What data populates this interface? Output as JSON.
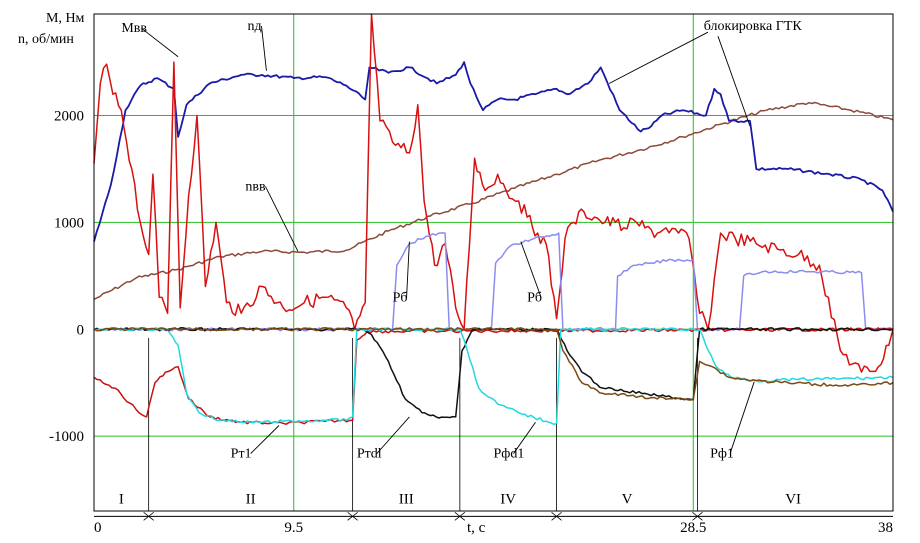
{
  "chart_data": {
    "type": "line",
    "ylabel_lines": [
      "M, Нм",
      "n, об/мин"
    ],
    "xlabel": "t, c",
    "xlim": [
      0,
      38
    ],
    "ylim": [
      -1700,
      2950
    ],
    "x_ticks": [
      {
        "v": 0,
        "label": "0"
      },
      {
        "v": 9.5,
        "label": "9.5"
      },
      {
        "v": 28.5,
        "label": "28.5"
      },
      {
        "v": 38,
        "label": "38"
      }
    ],
    "y_ticks": [
      {
        "v": 2000,
        "label": "2000"
      },
      {
        "v": 1000,
        "label": "1000"
      },
      {
        "v": 0,
        "label": "0"
      },
      {
        "v": -1000,
        "label": "-1000"
      }
    ],
    "grid": true,
    "phase_axis_y": -1750,
    "phases": [
      {
        "label": "I",
        "from": 0,
        "to": 2.6
      },
      {
        "label": "II",
        "from": 2.6,
        "to": 12.3
      },
      {
        "label": "III",
        "from": 12.3,
        "to": 17.4
      },
      {
        "label": "IV",
        "from": 17.4,
        "to": 22.0
      },
      {
        "label": "V",
        "from": 22.0,
        "to": 28.7
      },
      {
        "label": "VI",
        "from": 28.7,
        "to": 37.8
      }
    ],
    "series": [
      {
        "key": "n_vv",
        "color": "#8b4a3c",
        "points": [
          [
            0,
            280
          ],
          [
            2,
            480
          ],
          [
            4,
            560
          ],
          [
            6,
            680
          ],
          [
            8,
            730
          ],
          [
            10,
            720
          ],
          [
            12,
            740
          ],
          [
            14,
            920
          ],
          [
            16,
            1060
          ],
          [
            18,
            1180
          ],
          [
            20,
            1320
          ],
          [
            22,
            1450
          ],
          [
            24,
            1580
          ],
          [
            26,
            1680
          ],
          [
            28,
            1800
          ],
          [
            30,
            1930
          ],
          [
            32,
            2050
          ],
          [
            34,
            2120
          ],
          [
            36,
            2050
          ],
          [
            38,
            1960
          ]
        ]
      },
      {
        "key": "n_d",
        "color": "#1a1aa8",
        "points": [
          [
            0,
            820
          ],
          [
            0.8,
            1350
          ],
          [
            1.5,
            2050
          ],
          [
            2.2,
            2280
          ],
          [
            3,
            2350
          ],
          [
            3.8,
            2250
          ],
          [
            4,
            1800
          ],
          [
            4.4,
            2100
          ],
          [
            5.5,
            2300
          ],
          [
            7,
            2380
          ],
          [
            8,
            2380
          ],
          [
            9.5,
            2350
          ],
          [
            11,
            2360
          ],
          [
            12,
            2280
          ],
          [
            12.9,
            2150
          ],
          [
            13.1,
            2450
          ],
          [
            14,
            2400
          ],
          [
            15,
            2450
          ],
          [
            16.3,
            2300
          ],
          [
            17.2,
            2380
          ],
          [
            17.6,
            2500
          ],
          [
            17.9,
            2300
          ],
          [
            18.5,
            2050
          ],
          [
            19.2,
            2150
          ],
          [
            20,
            2150
          ],
          [
            21,
            2200
          ],
          [
            22,
            2250
          ],
          [
            22.5,
            2200
          ],
          [
            23.5,
            2300
          ],
          [
            24.1,
            2450
          ],
          [
            25,
            2050
          ],
          [
            26,
            1850
          ],
          [
            26.5,
            1900
          ],
          [
            27,
            2000
          ],
          [
            28,
            2050
          ],
          [
            29.1,
            2000
          ],
          [
            29.5,
            2250
          ],
          [
            29.8,
            2200
          ],
          [
            30.2,
            1950
          ],
          [
            31.2,
            1950
          ],
          [
            31.5,
            1500
          ],
          [
            33,
            1500
          ],
          [
            35,
            1450
          ],
          [
            36.5,
            1400
          ],
          [
            37.5,
            1300
          ],
          [
            38,
            1100
          ]
        ]
      },
      {
        "key": "M_vv",
        "color": "#d81010",
        "points": [
          [
            0,
            1550
          ],
          [
            0.3,
            2300
          ],
          [
            0.6,
            2480
          ],
          [
            0.9,
            2200
          ],
          [
            1.3,
            2050
          ],
          [
            1.8,
            1500
          ],
          [
            2.2,
            1000
          ],
          [
            2.6,
            700
          ],
          [
            2.8,
            1450
          ],
          [
            3.1,
            300
          ],
          [
            3.5,
            150
          ],
          [
            3.8,
            2500
          ],
          [
            4.1,
            200
          ],
          [
            4.5,
            1250
          ],
          [
            4.9,
            2000
          ],
          [
            5.3,
            400
          ],
          [
            5.8,
            1000
          ],
          [
            6.3,
            250
          ],
          [
            7,
            150
          ],
          [
            8,
            400
          ],
          [
            9,
            200
          ],
          [
            10,
            250
          ],
          [
            11,
            300
          ],
          [
            12,
            200
          ],
          [
            12.4,
            0
          ],
          [
            12.9,
            250
          ],
          [
            13.2,
            2950
          ],
          [
            13.6,
            1950
          ],
          [
            14.2,
            1750
          ],
          [
            15,
            1650
          ],
          [
            15.4,
            2100
          ],
          [
            15.7,
            1200
          ],
          [
            16.2,
            600
          ],
          [
            16.7,
            800
          ],
          [
            17.2,
            200
          ],
          [
            17.6,
            0
          ],
          [
            18.1,
            1600
          ],
          [
            18.6,
            1300
          ],
          [
            19.2,
            1450
          ],
          [
            19.6,
            1300
          ],
          [
            20.2,
            1200
          ],
          [
            20.6,
            1050
          ],
          [
            21.1,
            900
          ],
          [
            21.5,
            800
          ],
          [
            22,
            100
          ],
          [
            22.4,
            850
          ],
          [
            22.8,
            1000
          ],
          [
            23.3,
            1100
          ],
          [
            23.8,
            1050
          ],
          [
            24.3,
            1000
          ],
          [
            24.8,
            1000
          ],
          [
            25.2,
            950
          ],
          [
            25.8,
            1000
          ],
          [
            26.2,
            950
          ],
          [
            26.8,
            900
          ],
          [
            27.2,
            950
          ],
          [
            27.8,
            900
          ],
          [
            28.3,
            850
          ],
          [
            28.8,
            150
          ],
          [
            29.2,
            0
          ],
          [
            29.8,
            900
          ],
          [
            30.5,
            850
          ],
          [
            31.5,
            800
          ],
          [
            32.5,
            750
          ],
          [
            33.5,
            700
          ],
          [
            34.5,
            600
          ],
          [
            35.5,
            -200
          ],
          [
            36.5,
            -400
          ],
          [
            37.3,
            -350
          ],
          [
            37.8,
            -150
          ],
          [
            38,
            0
          ]
        ]
      },
      {
        "key": "P_b",
        "color": "#8c8cf0",
        "points": [
          [
            0,
            0
          ],
          [
            12,
            0
          ],
          [
            14.2,
            0
          ],
          [
            14.4,
            600
          ],
          [
            15,
            800
          ],
          [
            15.8,
            870
          ],
          [
            16.7,
            900
          ],
          [
            16.9,
            0
          ],
          [
            17,
            0
          ],
          [
            18.9,
            0
          ],
          [
            19.1,
            620
          ],
          [
            19.8,
            780
          ],
          [
            20.8,
            840
          ],
          [
            22.1,
            900
          ],
          [
            22.3,
            0
          ],
          [
            24.8,
            0
          ],
          [
            24.9,
            500
          ],
          [
            25.5,
            580
          ],
          [
            26.5,
            620
          ],
          [
            27.5,
            650
          ],
          [
            28.5,
            650
          ],
          [
            28.7,
            0
          ],
          [
            30.7,
            0
          ],
          [
            30.9,
            500
          ],
          [
            31.8,
            540
          ],
          [
            34,
            540
          ],
          [
            36.5,
            530
          ],
          [
            36.7,
            0
          ],
          [
            38,
            0
          ]
        ]
      },
      {
        "key": "P_t1",
        "color": "#c81010",
        "points": [
          [
            0,
            -450
          ],
          [
            1,
            -550
          ],
          [
            2,
            -750
          ],
          [
            2.5,
            -820
          ],
          [
            2.9,
            -500
          ],
          [
            3.4,
            -400
          ],
          [
            4,
            -350
          ],
          [
            4.5,
            -650
          ],
          [
            5.5,
            -820
          ],
          [
            7,
            -870
          ],
          [
            9,
            -880
          ],
          [
            11,
            -860
          ],
          [
            12.3,
            -850
          ],
          [
            12.5,
            -100
          ],
          [
            13,
            -20
          ],
          [
            38,
            0
          ]
        ]
      },
      {
        "key": "P_tdl",
        "color": "#111111",
        "points": [
          [
            0,
            0
          ],
          [
            12.8,
            0
          ],
          [
            13.2,
            -50
          ],
          [
            14,
            -300
          ],
          [
            14.8,
            -650
          ],
          [
            15.6,
            -780
          ],
          [
            16.4,
            -830
          ],
          [
            17.2,
            -820
          ],
          [
            17.5,
            -200
          ],
          [
            18,
            0
          ],
          [
            22,
            0
          ],
          [
            22.5,
            -200
          ],
          [
            23.2,
            -400
          ],
          [
            24.2,
            -550
          ],
          [
            25.2,
            -580
          ],
          [
            26.2,
            -600
          ],
          [
            27.2,
            -630
          ],
          [
            28.5,
            -660
          ],
          [
            28.8,
            0
          ],
          [
            38,
            0
          ]
        ]
      },
      {
        "key": "P_fd1",
        "color": "#20d8e0",
        "points": [
          [
            0,
            0
          ],
          [
            3.5,
            0
          ],
          [
            4,
            -150
          ],
          [
            4.4,
            -600
          ],
          [
            5,
            -780
          ],
          [
            6,
            -850
          ],
          [
            7,
            -870
          ],
          [
            8,
            -870
          ],
          [
            9,
            -860
          ],
          [
            10,
            -860
          ],
          [
            11,
            -850
          ],
          [
            12,
            -850
          ],
          [
            12.3,
            -820
          ],
          [
            12.5,
            0
          ],
          [
            17.4,
            0
          ],
          [
            17.6,
            -100
          ],
          [
            18.3,
            -550
          ],
          [
            19.2,
            -700
          ],
          [
            20.2,
            -780
          ],
          [
            21.5,
            -860
          ],
          [
            22,
            -880
          ],
          [
            22.2,
            0
          ],
          [
            28.8,
            0
          ],
          [
            29.1,
            -150
          ],
          [
            29.6,
            -350
          ],
          [
            30.3,
            -450
          ],
          [
            31.5,
            -480
          ],
          [
            38,
            -450
          ]
        ]
      },
      {
        "key": "P_f1",
        "color": "#7a4a14",
        "points": [
          [
            0,
            0
          ],
          [
            22,
            0
          ],
          [
            22.3,
            -200
          ],
          [
            23.2,
            -500
          ],
          [
            24.2,
            -600
          ],
          [
            25.5,
            -620
          ],
          [
            26.5,
            -640
          ],
          [
            27.5,
            -650
          ],
          [
            28.5,
            -650
          ],
          [
            28.8,
            -300
          ],
          [
            29.4,
            -350
          ],
          [
            30.2,
            -450
          ],
          [
            31.5,
            -480
          ],
          [
            33,
            -500
          ],
          [
            35,
            -520
          ],
          [
            37,
            -520
          ],
          [
            38,
            -500
          ]
        ]
      }
    ],
    "labels": [
      {
        "text": "Mвв",
        "x": 1.3,
        "y": 2780,
        "tx": 4.0,
        "ty": 2550
      },
      {
        "text": "nд",
        "x": 7.3,
        "y": 2800,
        "tx": 8.2,
        "ty": 2420
      },
      {
        "text": "nвв",
        "x": 7.2,
        "y": 1300,
        "tx": 9.7,
        "ty": 730
      },
      {
        "text": "блокировка ГТК",
        "x": 29.0,
        "y": 2800
      },
      {
        "text": "Pб",
        "x": 14.2,
        "y": 260,
        "tx": 15.0,
        "ty": 820
      },
      {
        "text": "Pб",
        "x": 20.6,
        "y": 260,
        "tx": 20.3,
        "ty": 820
      },
      {
        "text": "Pт1",
        "x": 6.5,
        "y": -1200,
        "tx": 8.8,
        "ty": -900
      },
      {
        "text": "Pтdl",
        "x": 12.5,
        "y": -1200,
        "tx": 15.0,
        "ty": -820
      },
      {
        "text": "Pфd1",
        "x": 19.0,
        "y": -1200,
        "tx": 21.0,
        "ty": -870
      },
      {
        "text": "Pф1",
        "x": 29.3,
        "y": -1200,
        "tx": 31.4,
        "ty": -490
      }
    ]
  }
}
